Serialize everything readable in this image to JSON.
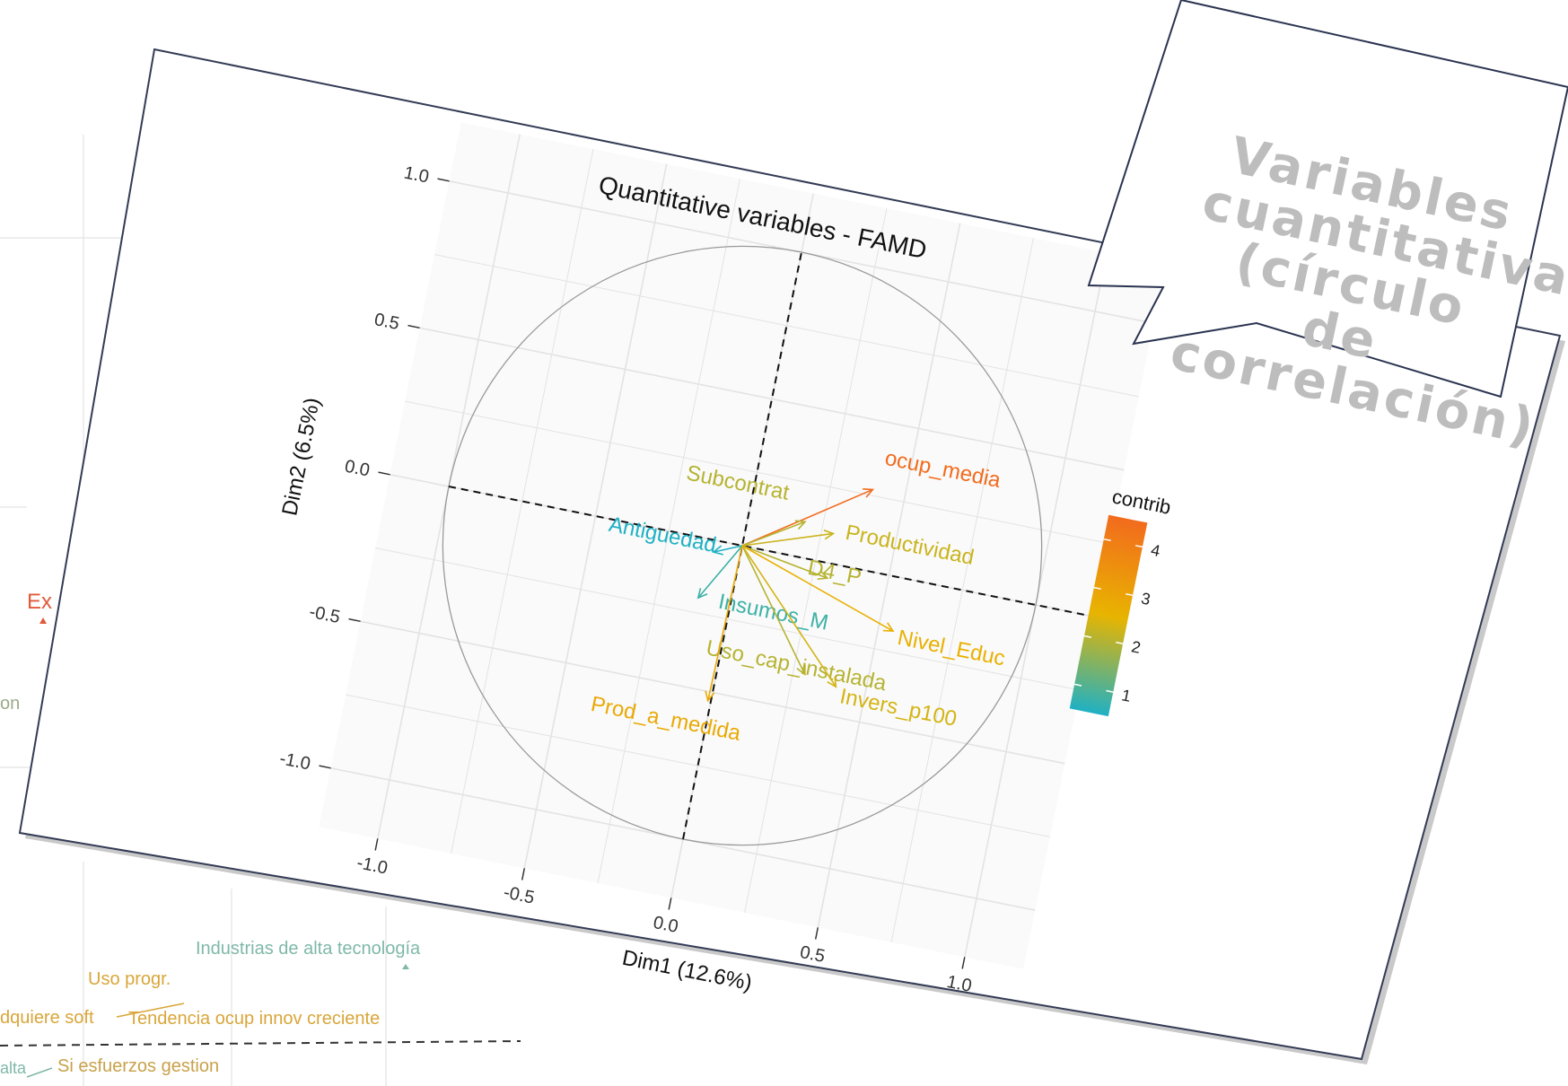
{
  "background_plot": {
    "labels": [
      {
        "text": "Ex",
        "color": "#e05a3a"
      },
      {
        "text": "on",
        "color": "#9aaa8a"
      },
      {
        "text": "Industrias de alta tecnología",
        "color": "#7fb8a8"
      },
      {
        "text": "Uso progr.",
        "color": "#d9a63a"
      },
      {
        "text": "dquiere soft",
        "color": "#d9a63a"
      },
      {
        "text": "Tendencia ocup innov creciente",
        "color": "#d9a63a"
      },
      {
        "text": "alta",
        "color": "#7fb8a8"
      },
      {
        "text": "Si esfuerzos gestion",
        "color": "#c8a24a"
      }
    ]
  },
  "chart_data": {
    "type": "scatter",
    "title": "Quantitative variables - FAMD",
    "xlabel": "Dim1 (12.6%)",
    "ylabel": "Dim2 (6.5%)",
    "xlim": [
      -1.0,
      1.0
    ],
    "ylim": [
      -1.0,
      1.0
    ],
    "x_ticks": [
      "-1.0",
      "-0.5",
      "0.0",
      "0.5",
      "1.0"
    ],
    "y_ticks": [
      "-1.0",
      "-0.5",
      "0.0",
      "0.5",
      "1.0"
    ],
    "grid": true,
    "unit_circle": true,
    "legend": {
      "title": "contrib",
      "ticks": [
        "1",
        "2",
        "3",
        "4"
      ],
      "range": [
        0.5,
        4.5
      ],
      "colors": [
        "#1fb1c4",
        "#e8b400",
        "#f26b1d"
      ]
    },
    "variables": [
      {
        "name": "ocup_media",
        "x": 0.39,
        "y": 0.27,
        "contrib": 4.6
      },
      {
        "name": "Subcontrat",
        "x": 0.19,
        "y": 0.12,
        "contrib": 2.0
      },
      {
        "name": "Productividad",
        "x": 0.29,
        "y": 0.1,
        "contrib": 2.2
      },
      {
        "name": "D4_P",
        "x": 0.3,
        "y": -0.05,
        "contrib": 2.0
      },
      {
        "name": "Antiguedad",
        "x": -0.09,
        "y": -0.04,
        "contrib": 0.4
      },
      {
        "name": "Insumos_M",
        "x": -0.11,
        "y": -0.2,
        "contrib": 0.8
      },
      {
        "name": "Nivel_Educ",
        "x": 0.55,
        "y": -0.18,
        "contrib": 2.6
      },
      {
        "name": "Uso_cap_instalada",
        "x": 0.29,
        "y": -0.38,
        "contrib": 2.0
      },
      {
        "name": "Invers_p100",
        "x": 0.4,
        "y": -0.4,
        "contrib": 2.3
      },
      {
        "name": "Prod_a_medida",
        "x": -0.01,
        "y": -0.53,
        "contrib": 2.8
      }
    ]
  },
  "callout": {
    "lines": [
      "Variables",
      "cuantitativas",
      "(círculo de",
      "correlación)"
    ]
  }
}
